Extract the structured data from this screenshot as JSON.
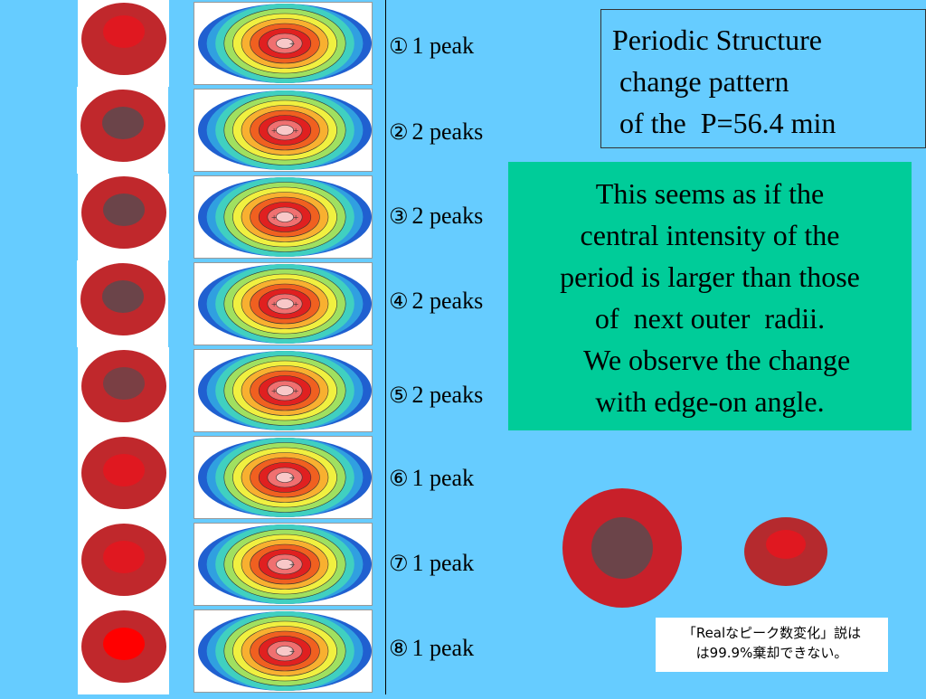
{
  "rows": [
    {
      "number": "①",
      "text": "1 peak",
      "center_color": "#e01820"
    },
    {
      "number": "②",
      "text": "2 peaks",
      "center_color": "#6b4449"
    },
    {
      "number": "③",
      "text": "2 peaks",
      "center_color": "#6b4449"
    },
    {
      "number": "④",
      "text": "2 peaks",
      "center_color": "#6b4449"
    },
    {
      "number": "⑤",
      "text": "2 peaks",
      "center_color": "#7a3f44"
    },
    {
      "number": "⑥",
      "text": "1 peak",
      "center_color": "#e01820"
    },
    {
      "number": "⑦",
      "text": "1 peak",
      "center_color": "#e01820"
    },
    {
      "number": "⑧",
      "text": "1 peak",
      "center_color": "#ff0000"
    }
  ],
  "title_box": {
    "line1": "Periodic Structure",
    "line2": " change pattern",
    "line3": " of the  P=56.4 min"
  },
  "green_box": {
    "line1": "This seems as if the",
    "line2": "central intensity of the",
    "line3": "period is larger than those",
    "line4": "of  next outer  radii.",
    "line5": "  We observe the change",
    "line6": "with edge-on angle."
  },
  "note": {
    "line1": "「Realなピーク数変化」説は",
    "line2": "は99.9%棄却できない。"
  },
  "colors": {
    "background": "#66ccff",
    "outer_ring": "#c0282c",
    "green_box": "#00cc99"
  }
}
